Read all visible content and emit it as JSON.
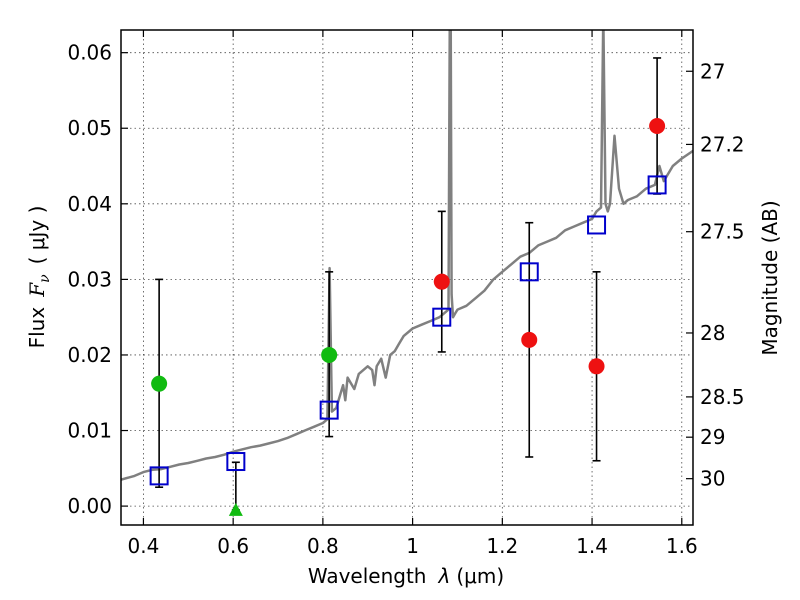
{
  "chart_data": {
    "type": "scatter",
    "title": "",
    "xlabel_prefix": "Wavelength",
    "xlabel_lambda": "λ",
    "xlabel_unit": "(μm)",
    "ylabel_prefix": "Flux",
    "ylabel_symbol": "F",
    "ylabel_subscript": "ν",
    "ylabel_unit": "( μJy )",
    "y2label": "Magnitude (AB)",
    "xlim": [
      0.35,
      1.625
    ],
    "ylim": [
      -0.0025,
      0.063
    ],
    "grid": true,
    "x_ticks": [
      {
        "value": 0.4,
        "label": "0.4"
      },
      {
        "value": 0.6,
        "label": "0.6"
      },
      {
        "value": 0.8,
        "label": "0.8"
      },
      {
        "value": 1.0,
        "label": "1"
      },
      {
        "value": 1.2,
        "label": "1.2"
      },
      {
        "value": 1.4,
        "label": "1.4"
      },
      {
        "value": 1.6,
        "label": "1.6"
      }
    ],
    "y_ticks": [
      {
        "value": 0.0,
        "label": "0.00"
      },
      {
        "value": 0.01,
        "label": "0.01"
      },
      {
        "value": 0.02,
        "label": "0.02"
      },
      {
        "value": 0.03,
        "label": "0.03"
      },
      {
        "value": 0.04,
        "label": "0.04"
      },
      {
        "value": 0.05,
        "label": "0.05"
      },
      {
        "value": 0.06,
        "label": "0.06"
      }
    ],
    "y2_ticks": [
      {
        "flux": 0.05754,
        "label": "27"
      },
      {
        "flux": 0.04786,
        "label": "27.2"
      },
      {
        "flux": 0.03631,
        "label": "27.5"
      },
      {
        "flux": 0.02291,
        "label": "28"
      },
      {
        "flux": 0.01445,
        "label": "28.5"
      },
      {
        "flux": 0.00912,
        "label": "29"
      },
      {
        "flux": 0.00363,
        "label": "30"
      }
    ],
    "colors": {
      "model": "#808080",
      "model_points": "#0000cc",
      "detections": "#ee1111",
      "upper_limits": "#11bb11",
      "errorbars": "#000000"
    },
    "model_spectrum": {
      "x": [
        0.35,
        0.38,
        0.4,
        0.42,
        0.44,
        0.46,
        0.48,
        0.5,
        0.52,
        0.54,
        0.56,
        0.58,
        0.6,
        0.62,
        0.64,
        0.66,
        0.68,
        0.7,
        0.72,
        0.74,
        0.76,
        0.78,
        0.8,
        0.81,
        0.815,
        0.82,
        0.83,
        0.84,
        0.845,
        0.85,
        0.855,
        0.86,
        0.87,
        0.88,
        0.9,
        0.91,
        0.915,
        0.92,
        0.93,
        0.94,
        0.95,
        0.96,
        0.97,
        0.98,
        1.0,
        1.02,
        1.04,
        1.06,
        1.07,
        1.08,
        1.083,
        1.085,
        1.087,
        1.09,
        1.095,
        1.1,
        1.12,
        1.14,
        1.16,
        1.18,
        1.2,
        1.22,
        1.24,
        1.26,
        1.28,
        1.3,
        1.32,
        1.34,
        1.36,
        1.38,
        1.4,
        1.41,
        1.42,
        1.425,
        1.43,
        1.435,
        1.44,
        1.45,
        1.46,
        1.47,
        1.48,
        1.5,
        1.52,
        1.54,
        1.55,
        1.56,
        1.58,
        1.6,
        1.625
      ],
      "y": [
        0.0035,
        0.004,
        0.0045,
        0.0048,
        0.0049,
        0.0052,
        0.0055,
        0.0057,
        0.006,
        0.0063,
        0.0065,
        0.0068,
        0.0072,
        0.0075,
        0.0078,
        0.008,
        0.0083,
        0.0086,
        0.009,
        0.0095,
        0.01,
        0.0105,
        0.011,
        0.0115,
        0.0315,
        0.0125,
        0.013,
        0.015,
        0.016,
        0.014,
        0.017,
        0.0165,
        0.0155,
        0.0175,
        0.0185,
        0.018,
        0.016,
        0.0185,
        0.0195,
        0.017,
        0.02,
        0.0205,
        0.0215,
        0.0225,
        0.0235,
        0.024,
        0.0245,
        0.025,
        0.0255,
        0.026,
        0.065,
        0.065,
        0.028,
        0.025,
        0.0255,
        0.026,
        0.0265,
        0.0275,
        0.0285,
        0.03,
        0.031,
        0.032,
        0.033,
        0.0335,
        0.0345,
        0.035,
        0.0355,
        0.0365,
        0.037,
        0.0375,
        0.038,
        0.039,
        0.0395,
        0.065,
        0.04,
        0.039,
        0.04,
        0.049,
        0.042,
        0.04,
        0.0405,
        0.041,
        0.042,
        0.0425,
        0.045,
        0.043,
        0.045,
        0.046,
        0.047
      ]
    },
    "model_points": [
      {
        "x": 0.435,
        "y": 0.004
      },
      {
        "x": 0.606,
        "y": 0.0059
      },
      {
        "x": 0.814,
        "y": 0.0127
      },
      {
        "x": 1.065,
        "y": 0.025
      },
      {
        "x": 1.26,
        "y": 0.031
      },
      {
        "x": 1.41,
        "y": 0.0372
      },
      {
        "x": 1.545,
        "y": 0.0425
      }
    ],
    "detections": [
      {
        "x": 1.065,
        "y": 0.0297,
        "err": 0.0093
      },
      {
        "x": 1.26,
        "y": 0.022,
        "err": 0.0155
      },
      {
        "x": 1.41,
        "y": 0.0185,
        "err": 0.0125
      },
      {
        "x": 1.545,
        "y": 0.0503,
        "err": 0.009
      }
    ],
    "upper_limits": [
      {
        "x": 0.435,
        "y": 0.0162,
        "lo": 0.0025,
        "hi": 0.03,
        "marker": "circle"
      },
      {
        "x": 0.606,
        "y": -0.0005,
        "lo": -0.0005,
        "hi": 0.0058,
        "marker": "triangle"
      },
      {
        "x": 0.814,
        "y": 0.02,
        "lo": 0.0092,
        "hi": 0.031,
        "marker": "circle"
      }
    ]
  }
}
